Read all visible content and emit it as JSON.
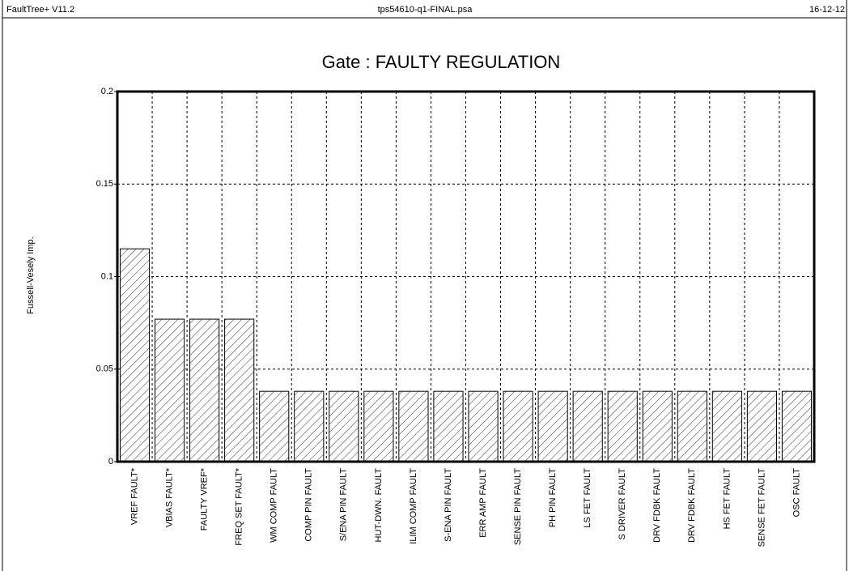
{
  "header": {
    "left": "FaultTree+ V11.2",
    "center": "tps54610-q1-FINAL.psa",
    "right": "16-12-12"
  },
  "chart_data": {
    "type": "bar",
    "title": "Gate : FAULTY REGULATION",
    "y_label": "Fussell-Vesely Imp.",
    "categories": [
      "VREF FAULT*",
      "VBIAS FAULT*",
      "FAULTY VREF*",
      "FREQ SET FAULT*",
      "WM COMP FAULT",
      "COMP PIN FAULT",
      "S/ENA PIN FAULT",
      "HUT-DWN. FAULT",
      "ILIM COMP FAULT",
      "S-ENA PIN FAULT",
      "ERR AMP FAULT",
      "SENSE PIN FAULT",
      "PH PIN FAULT",
      "LS FET FAULT",
      "S DRIVER FAULT",
      "DRV FDBK FAULT",
      "DRV FDBK FAULT",
      "HS FET FAULT",
      "SENSE FET FAULT",
      "OSC FAULT"
    ],
    "values": [
      0.115,
      0.077,
      0.077,
      0.077,
      0.038,
      0.038,
      0.038,
      0.038,
      0.038,
      0.038,
      0.038,
      0.038,
      0.038,
      0.038,
      0.038,
      0.038,
      0.038,
      0.038,
      0.038,
      0.038
    ],
    "color": "#ffffff",
    "ylim": [
      0,
      0.2
    ],
    "yticks": [
      0,
      0.05,
      0.1,
      0.15,
      0.2
    ],
    "grid": true
  }
}
